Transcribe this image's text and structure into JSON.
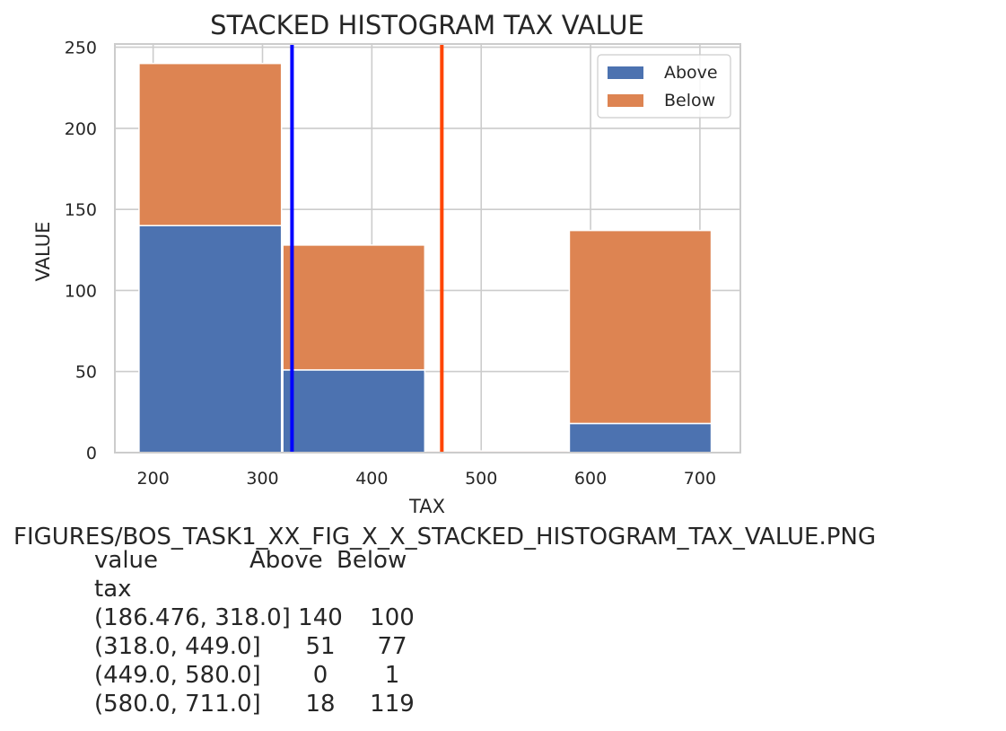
{
  "chart_data": {
    "type": "bar",
    "stacked": true,
    "title": "STACKED HISTOGRAM TAX VALUE",
    "xlabel": "TAX",
    "ylabel": "VALUE",
    "xlim": [
      165,
      737
    ],
    "ylim": [
      0,
      252
    ],
    "xticks": [
      200,
      300,
      400,
      500,
      600,
      700
    ],
    "yticks": [
      0,
      50,
      100,
      150,
      200,
      250
    ],
    "grid": true,
    "legend_position": "top-right",
    "bins": [
      {
        "from": 186.476,
        "to": 318.0
      },
      {
        "from": 318.0,
        "to": 449.0
      },
      {
        "from": 449.0,
        "to": 580.0
      },
      {
        "from": 580.0,
        "to": 711.0
      }
    ],
    "series": [
      {
        "name": "Above",
        "color": "#4c72b0",
        "values": [
          140,
          51,
          0,
          18
        ]
      },
      {
        "name": "Below",
        "color": "#dd8452",
        "values": [
          100,
          77,
          1,
          119
        ]
      }
    ],
    "vertical_lines": [
      {
        "x": 327,
        "color": "#0000ff"
      },
      {
        "x": 464,
        "color": "#ff4500"
      }
    ]
  },
  "caption": "FIGURES/BOS_TASK1_XX_FIG_X_X_STACKED_HISTOGRAM_TAX_VALUE.PNG",
  "summary_table": {
    "header": {
      "index_label": "value",
      "columns": [
        "Above",
        "Below"
      ]
    },
    "index_name": "tax",
    "rows": [
      {
        "label": "(186.476, 318.0]",
        "values": [
          "140",
          "100"
        ]
      },
      {
        "label": "(318.0, 449.0]",
        "values": [
          "51",
          "77"
        ]
      },
      {
        "label": "(449.0, 580.0]",
        "values": [
          "0",
          "1"
        ]
      },
      {
        "label": "(580.0, 711.0]",
        "values": [
          "18",
          "119"
        ]
      }
    ]
  }
}
